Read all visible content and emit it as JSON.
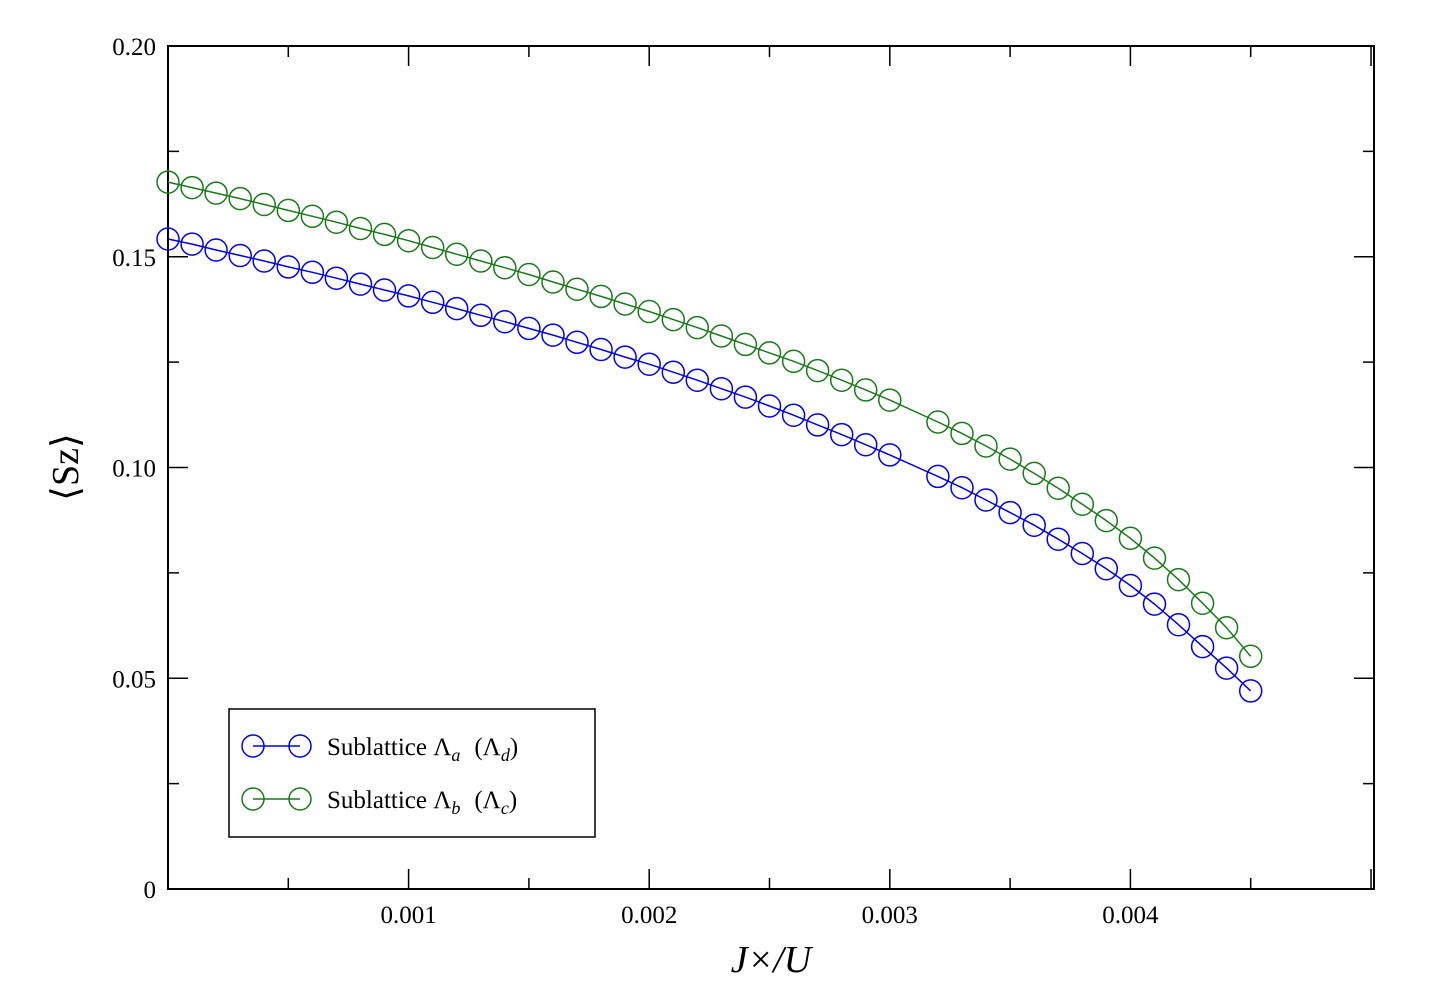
{
  "chart_data": {
    "type": "line",
    "title": "",
    "xlabel": "J×/U",
    "ylabel": "⟨Sz⟩",
    "xlim": [
      0,
      0.005
    ],
    "ylim": [
      0,
      0.2
    ],
    "x_ticks": [
      0.001,
      0.002,
      0.003,
      0.004
    ],
    "x_tick_labels": [
      "0.001",
      "0.002",
      "0.003",
      "0.004"
    ],
    "y_ticks": [
      0,
      0.05,
      0.1,
      0.15,
      0.2
    ],
    "y_tick_labels": [
      "0",
      "0.05",
      "0.10",
      "0.15",
      "0.20"
    ],
    "legend_position": "bottom-left",
    "grid": false,
    "marker": "open-circle",
    "series": [
      {
        "name": "Sublattice Λa (Λd)",
        "label_main": "Sublattice Λ",
        "label_sub": "a",
        "label_paren": "(Λ",
        "label_paren_sub": "d",
        "label_close": ")",
        "color": "#0000ee",
        "x": [
          0.0,
          0.0001,
          0.0002,
          0.0003,
          0.0004,
          0.0005,
          0.0006,
          0.0007,
          0.0008,
          0.0009,
          0.001,
          0.0011,
          0.0012,
          0.0013,
          0.0014,
          0.0015,
          0.0016,
          0.0017,
          0.0018,
          0.0019,
          0.002,
          0.0021,
          0.0022,
          0.0023,
          0.0024,
          0.0025,
          0.0026,
          0.0027,
          0.0028,
          0.0029,
          0.003,
          0.0032,
          0.0033,
          0.0034,
          0.0035,
          0.0036,
          0.0037,
          0.0038,
          0.0039,
          0.004,
          0.0041,
          0.0042,
          0.0043,
          0.0044,
          0.0045
        ],
        "values": [
          0.1542,
          0.153,
          0.1516,
          0.1503,
          0.149,
          0.1476,
          0.1463,
          0.1449,
          0.1435,
          0.1421,
          0.1407,
          0.1392,
          0.1377,
          0.1361,
          0.1346,
          0.133,
          0.1314,
          0.1297,
          0.128,
          0.1262,
          0.1245,
          0.1226,
          0.1207,
          0.1187,
          0.1167,
          0.1146,
          0.1124,
          0.1101,
          0.1078,
          0.1054,
          0.103,
          0.0979,
          0.0952,
          0.0923,
          0.0893,
          0.0863,
          0.083,
          0.0796,
          0.076,
          0.072,
          0.0676,
          0.0627,
          0.0575,
          0.0524,
          0.047
        ]
      },
      {
        "name": "Sublattice Λb (Λc)",
        "label_main": "Sublattice Λ",
        "label_sub": "b",
        "label_paren": "(Λ",
        "label_paren_sub": "c",
        "label_close": ")",
        "color": "#1a7a1a",
        "x": [
          0.0,
          0.0001,
          0.0002,
          0.0003,
          0.0004,
          0.0005,
          0.0006,
          0.0007,
          0.0008,
          0.0009,
          0.001,
          0.0011,
          0.0012,
          0.0013,
          0.0014,
          0.0015,
          0.0016,
          0.0017,
          0.0018,
          0.0019,
          0.002,
          0.0021,
          0.0022,
          0.0023,
          0.0024,
          0.0025,
          0.0026,
          0.0027,
          0.0028,
          0.0029,
          0.003,
          0.0032,
          0.0033,
          0.0034,
          0.0035,
          0.0036,
          0.0037,
          0.0038,
          0.0039,
          0.004,
          0.0041,
          0.0042,
          0.0043,
          0.0044,
          0.0045
        ],
        "values": [
          0.1677,
          0.1664,
          0.1651,
          0.1638,
          0.1624,
          0.161,
          0.1596,
          0.1582,
          0.1567,
          0.1553,
          0.1538,
          0.1522,
          0.1506,
          0.149,
          0.1474,
          0.1458,
          0.144,
          0.1423,
          0.1406,
          0.1388,
          0.137,
          0.1351,
          0.1332,
          0.1312,
          0.1292,
          0.1272,
          0.1252,
          0.123,
          0.1207,
          0.1184,
          0.116,
          0.1108,
          0.1081,
          0.1051,
          0.102,
          0.0986,
          0.0951,
          0.0913,
          0.0874,
          0.0832,
          0.0785,
          0.0734,
          0.0678,
          0.062,
          0.0552
        ]
      }
    ]
  }
}
